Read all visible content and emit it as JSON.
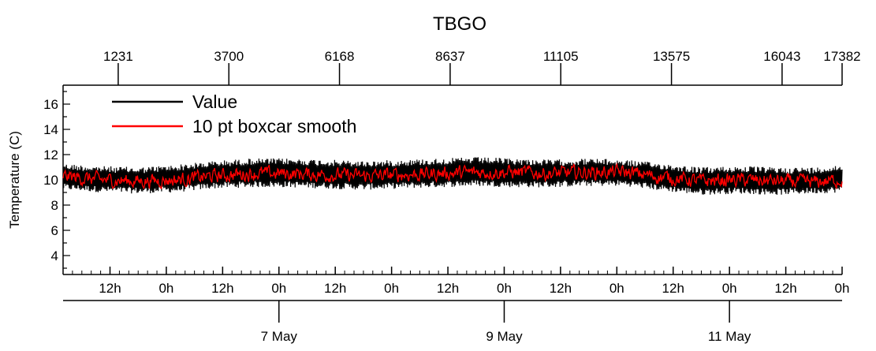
{
  "chart_data": {
    "type": "line",
    "title": "TBGO",
    "ylabel": "Temperature (C)",
    "ylim": [
      2.5,
      17.5
    ],
    "y_ticks": [
      4,
      6,
      8,
      10,
      12,
      14,
      16
    ],
    "grid": false,
    "legend_position": "top-left",
    "top_axis": {
      "range": [
        1,
        17382
      ],
      "ticks": [
        1231,
        3700,
        6168,
        8637,
        11105,
        13575,
        16043,
        17382
      ]
    },
    "time_axis": {
      "start": "2017-05-05 02:00",
      "end": "2017-05-12 00:00",
      "hour_ticks": [
        {
          "t": "2017-05-05 12:00",
          "label": "12h"
        },
        {
          "t": "2017-05-06 00:00",
          "label": "0h"
        },
        {
          "t": "2017-05-06 12:00",
          "label": "12h"
        },
        {
          "t": "2017-05-07 00:00",
          "label": "0h"
        },
        {
          "t": "2017-05-07 12:00",
          "label": "12h"
        },
        {
          "t": "2017-05-08 00:00",
          "label": "0h"
        },
        {
          "t": "2017-05-08 12:00",
          "label": "12h"
        },
        {
          "t": "2017-05-09 00:00",
          "label": "0h"
        },
        {
          "t": "2017-05-09 12:00",
          "label": "12h"
        },
        {
          "t": "2017-05-10 00:00",
          "label": "0h"
        },
        {
          "t": "2017-05-10 12:00",
          "label": "12h"
        },
        {
          "t": "2017-05-11 00:00",
          "label": "0h"
        },
        {
          "t": "2017-05-11 12:00",
          "label": "12h"
        },
        {
          "t": "2017-05-12 00:00",
          "label": "0h"
        }
      ],
      "day_ticks": [
        {
          "t": "2017-05-07 00:00",
          "label": "7 May"
        },
        {
          "t": "2017-05-09 00:00",
          "label": "9 May"
        },
        {
          "t": "2017-05-11 00:00",
          "label": "11 May"
        }
      ]
    },
    "series": [
      {
        "name": "Value",
        "color": "#000000",
        "x": [
          "2017-05-05 02:00",
          "2017-05-05 10:00",
          "2017-05-05 18:00",
          "2017-05-06 02:00",
          "2017-05-06 10:00",
          "2017-05-06 18:00",
          "2017-05-07 02:00",
          "2017-05-07 10:00",
          "2017-05-07 18:00",
          "2017-05-08 02:00",
          "2017-05-08 10:00",
          "2017-05-08 18:00",
          "2017-05-09 02:00",
          "2017-05-09 10:00",
          "2017-05-09 18:00",
          "2017-05-10 02:00",
          "2017-05-10 10:00",
          "2017-05-10 18:00",
          "2017-05-11 02:00",
          "2017-05-11 10:00",
          "2017-05-11 18:00",
          "2017-05-12 00:00"
        ],
        "min": [
          9.2,
          9.0,
          8.9,
          9.0,
          9.3,
          9.4,
          9.4,
          9.3,
          9.2,
          9.3,
          9.4,
          9.5,
          9.4,
          9.4,
          9.5,
          9.5,
          9.1,
          8.8,
          8.9,
          8.8,
          8.9,
          9.0
        ],
        "max": [
          11.3,
          11.1,
          11.0,
          11.2,
          11.5,
          11.7,
          11.7,
          11.6,
          11.5,
          11.6,
          11.7,
          11.8,
          11.7,
          11.6,
          11.7,
          11.6,
          11.3,
          11.0,
          11.1,
          11.0,
          11.0,
          11.2
        ]
      },
      {
        "name": "10 pt boxcar smooth",
        "color": "#ff0000",
        "x": [
          "2017-05-05 02:00",
          "2017-05-05 10:00",
          "2017-05-05 18:00",
          "2017-05-06 02:00",
          "2017-05-06 10:00",
          "2017-05-06 18:00",
          "2017-05-07 02:00",
          "2017-05-07 10:00",
          "2017-05-07 18:00",
          "2017-05-08 02:00",
          "2017-05-08 10:00",
          "2017-05-08 18:00",
          "2017-05-09 02:00",
          "2017-05-09 10:00",
          "2017-05-09 18:00",
          "2017-05-10 02:00",
          "2017-05-10 10:00",
          "2017-05-10 18:00",
          "2017-05-11 02:00",
          "2017-05-11 10:00",
          "2017-05-11 18:00",
          "2017-05-12 00:00"
        ],
        "values": [
          10.3,
          10.0,
          9.9,
          10.0,
          10.3,
          10.5,
          10.5,
          10.4,
          10.3,
          10.4,
          10.5,
          10.6,
          10.6,
          10.5,
          10.6,
          10.6,
          10.2,
          9.9,
          10.0,
          9.9,
          9.8,
          10.0
        ],
        "noise": 0.45
      }
    ]
  }
}
